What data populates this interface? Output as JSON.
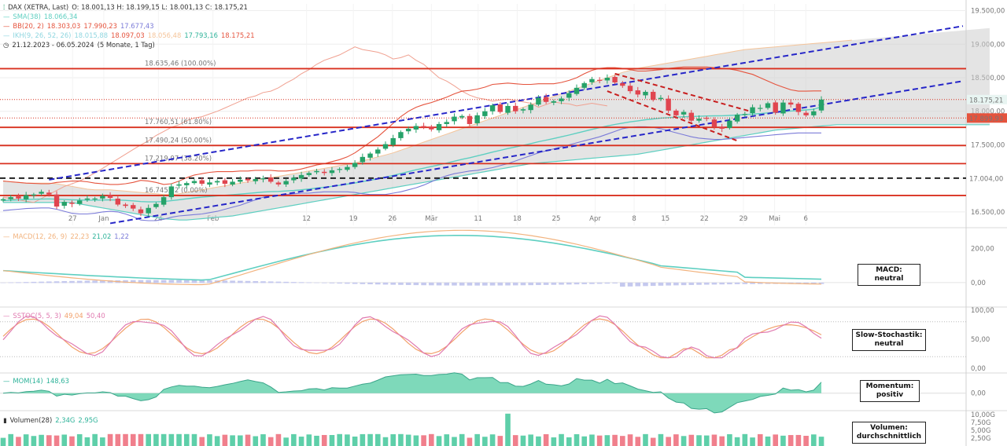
{
  "colors": {
    "up": "#26a269",
    "down": "#e0454f",
    "sma": "#5ecfc1",
    "bb": "#e5533d",
    "ichi_a": "#cdcdcd",
    "fib": "#d9301f",
    "trend": "#2626c8",
    "macd": "#5ecfc1",
    "signal": "#f2b37e",
    "stoch_k": "#e07ab0",
    "stoch_d": "#f2a06a",
    "mom_fill": "#5ecfa9",
    "vol_up": "#5ecfa9",
    "vol_down": "#f07f8c"
  },
  "legend": {
    "symbol": "DAX (XETRA, Last)",
    "ohlc": "O: 18.001,13  H: 18.199,15  L: 18.001,13  C: 18.175,21",
    "sma_name": "SMA(38)",
    "sma_val": "18.066,34",
    "bb_name": "BB(20, 2)",
    "bb_v1": "18.303,03",
    "bb_v2": "17.990,23",
    "bb_v3": "17.677,43",
    "ikh_name": "IKH(9, 26, 52, 26)",
    "ikh_v1": "18.015,88",
    "ikh_v2": "18.097,03",
    "ikh_v3": "18.056,48",
    "ikh_v4": "17.793,16",
    "ikh_v5": "18.175,21",
    "range": "21.12.2023 - 06.05.2024",
    "range_note": "(5 Monate, 1 Tag)",
    "macd_name": "MACD(12, 26, 9)",
    "macd_v1": "22,23",
    "macd_v2": "21,02",
    "macd_v3": "1,22",
    "sstoc_name": "SSTOC(5, 5, 3)",
    "sstoc_v1": "49,04",
    "sstoc_v2": "50,40",
    "mom_name": "MOM(14)",
    "mom_v": "148,63",
    "vol_name": "Volumen(28)",
    "vol_v1": "2,34G",
    "vol_v2": "2,95G"
  },
  "signals": {
    "macd": "MACD:\nneutral",
    "stoch": "Slow-Stochastik:\nneutral",
    "mom": "Momentum:\npositiv",
    "vol": "Volumen:\ndurchschnittlich"
  },
  "fib_labels": [
    "18.635,46 (100.00%)",
    "17.760,51 (61.80%)",
    "17.490,24 (50.00%)",
    "17.219,97 (38.20%)",
    "16.745,52 (0.00%)"
  ],
  "price_tags": {
    "last": "18.175,21",
    "red": "17.899,93",
    "support": "17.004,00"
  },
  "chart_data": {
    "type": "candlestick",
    "main": {
      "ylim": [
        16300,
        19600
      ],
      "y_ticks": [
        "19.500,00",
        "19.000,00",
        "18.500,00",
        "18.000,00",
        "17.500,00",
        "17.000,00",
        "16.500,00"
      ],
      "y_tick_values": [
        19500,
        19000,
        18500,
        18000,
        17500,
        17000,
        16500
      ],
      "x_tick_labels": [
        "27",
        "Jan",
        "24",
        "Feb",
        "12",
        "19",
        "26",
        "Mär",
        "11",
        "18",
        "25",
        "Apr",
        "8",
        "15",
        "22",
        "29",
        "Mai",
        "6"
      ],
      "closes": [
        16690,
        16720,
        16700,
        16750,
        16760,
        16800,
        16760,
        16580,
        16650,
        16620,
        16670,
        16700,
        16700,
        16740,
        16710,
        16610,
        16590,
        16550,
        16480,
        16560,
        16620,
        16720,
        16880,
        16910,
        16930,
        16960,
        16920,
        16940,
        16960,
        16920,
        16950,
        16980,
        16970,
        16990,
        17000,
        16950,
        16910,
        16960,
        17010,
        17050,
        17080,
        17110,
        17080,
        17120,
        17140,
        17170,
        17230,
        17320,
        17370,
        17430,
        17510,
        17600,
        17690,
        17740,
        17780,
        17760,
        17730,
        17810,
        17840,
        17920,
        17930,
        17810,
        17940,
        18000,
        18090,
        17990,
        18080,
        18000,
        18030,
        18100,
        18200,
        18140,
        18150,
        18190,
        18270,
        18350,
        18420,
        18480,
        18460,
        18500,
        18430,
        18380,
        18300,
        18250,
        18290,
        18170,
        18200,
        18010,
        17940,
        17990,
        17860,
        17890,
        17890,
        17770,
        17740,
        17860,
        17950,
        17960,
        18060,
        18050,
        18120,
        17980,
        18130,
        18100,
        17990,
        17940,
        18000,
        18175
      ],
      "sma": [
        16670,
        16675,
        16680,
        16685,
        16688,
        16692,
        16694,
        16690,
        16685,
        16680,
        16678,
        16676,
        16676,
        16678,
        16680,
        16678,
        16672,
        16665,
        16655,
        16650,
        16650,
        16655,
        16668,
        16682,
        16696,
        16710,
        16720,
        16730,
        16740,
        16748,
        16756,
        16766,
        16776,
        16786,
        16796,
        16802,
        16806,
        16812,
        16820,
        16830,
        16842,
        16856,
        16868,
        16882,
        16898,
        16914,
        16932,
        16952,
        16972,
        16994,
        17018,
        17044,
        17072,
        17100,
        17128,
        17152,
        17176,
        17202,
        17228,
        17256,
        17284,
        17308,
        17334,
        17362,
        17392,
        17418,
        17444,
        17468,
        17492,
        17518,
        17546,
        17570,
        17594,
        17620,
        17646,
        17674,
        17702,
        17730,
        17756,
        17782,
        17804,
        17824,
        17842,
        17858,
        17874,
        17886,
        17898,
        17906,
        17912,
        17918,
        17922,
        17926,
        17930,
        17932,
        17934,
        17938,
        17944,
        17950,
        17958,
        17966,
        17976,
        17984,
        17994,
        18004,
        18012,
        18020,
        18030,
        18066
      ],
      "bb_upper": [
        16960,
        16950,
        16940,
        16930,
        16925,
        16920,
        16920,
        16940,
        16950,
        16960,
        16960,
        16950,
        16930,
        16920,
        16910,
        16910,
        16920,
        16940,
        16970,
        16960,
        16940,
        16910,
        16920,
        16960,
        17010,
        17050,
        17070,
        17090,
        17100,
        17100,
        17100,
        17110,
        17110,
        17120,
        17120,
        17120,
        17110,
        17110,
        17120,
        17140,
        17170,
        17200,
        17220,
        17250,
        17280,
        17320,
        17380,
        17460,
        17540,
        17620,
        17720,
        17820,
        17920,
        18000,
        18060,
        18100,
        18130,
        18170,
        18210,
        18260,
        18300,
        18310,
        18330,
        18360,
        18400,
        18410,
        18420,
        18410,
        18400,
        18400,
        18410,
        18410,
        18410,
        18430,
        18460,
        18500,
        18560,
        18610,
        18640,
        18650,
        18650,
        18640,
        18620,
        18600,
        18600,
        18610,
        18620,
        18640,
        18650,
        18660,
        18660,
        18660,
        18660,
        18650,
        18640,
        18630,
        18610,
        18580,
        18550,
        18500,
        18450,
        18400,
        18360,
        18320,
        18300,
        18300,
        18303,
        18303
      ],
      "bb_lower": [
        16520,
        16530,
        16540,
        16550,
        16555,
        16560,
        16560,
        16540,
        16510,
        16480,
        16470,
        16470,
        16480,
        16500,
        16510,
        16500,
        16470,
        16430,
        16380,
        16370,
        16370,
        16390,
        16420,
        16440,
        16450,
        16460,
        16470,
        16490,
        16510,
        16540,
        16570,
        16600,
        16640,
        16680,
        16720,
        16740,
        16750,
        16760,
        16770,
        16780,
        16780,
        16790,
        16800,
        16800,
        16800,
        16800,
        16790,
        16770,
        16760,
        16760,
        16760,
        16780,
        16800,
        16830,
        16860,
        16900,
        16950,
        17000,
        17040,
        17070,
        17090,
        17110,
        17120,
        17140,
        17160,
        17190,
        17220,
        17260,
        17300,
        17340,
        17380,
        17410,
        17440,
        17470,
        17500,
        17530,
        17560,
        17590,
        17620,
        17660,
        17700,
        17740,
        17760,
        17770,
        17770,
        17760,
        17740,
        17710,
        17680,
        17650,
        17620,
        17600,
        17590,
        17580,
        17580,
        17590,
        17600,
        17610,
        17620,
        17630,
        17640,
        17650,
        17660,
        17670,
        17677,
        17677,
        17677,
        17677
      ],
      "cloud_top": [
        16960,
        16950,
        16940,
        16930,
        16930,
        16930,
        16930,
        16920,
        16900,
        16880,
        16860,
        16840,
        16830,
        16830,
        16830,
        16820,
        16810,
        16800,
        16790,
        16780,
        16770,
        16760,
        16760,
        16770,
        16790,
        16810,
        16830,
        16850,
        16870,
        16890,
        16910,
        16930,
        16950,
        16970,
        16990,
        17010,
        17030,
        17050,
        17070,
        17090,
        17110,
        17130,
        17150,
        17170,
        17190,
        17210,
        17230,
        17260,
        17290,
        17320,
        17350,
        17380,
        17420,
        17460,
        17500,
        17540,
        17580,
        17620,
        17660,
        17700,
        17740,
        17780,
        17820,
        17860,
        17900,
        17940,
        17980,
        18020,
        18060,
        18100,
        18140,
        18180,
        18220,
        18260,
        18300,
        18340,
        18380,
        18420,
        18460,
        18500,
        18540,
        18580,
        18610,
        18640,
        18660,
        18680,
        18700,
        18720,
        18740,
        18760,
        18780,
        18800,
        18820,
        18840,
        18860,
        18880,
        18900,
        18920,
        18930,
        18940,
        18950,
        18960,
        18970,
        18980,
        18990,
        19000,
        19010,
        19020,
        19030,
        19040,
        19050,
        19060,
        19070,
        19080,
        19090,
        19100,
        19110,
        19120,
        19130,
        19140,
        19150,
        19160,
        19170,
        19180,
        19190,
        19200,
        19210,
        19220,
        19230,
        19240
      ],
      "cloud_bottom": [
        16640,
        16640,
        16640,
        16640,
        16640,
        16640,
        16640,
        16640,
        16640,
        16640,
        16620,
        16600,
        16580,
        16560,
        16540,
        16520,
        16500,
        16480,
        16460,
        16440,
        16420,
        16400,
        16390,
        16380,
        16380,
        16390,
        16400,
        16410,
        16420,
        16430,
        16440,
        16460,
        16480,
        16500,
        16520,
        16540,
        16560,
        16580,
        16600,
        16620,
        16640,
        16660,
        16680,
        16700,
        16720,
        16740,
        16760,
        16780,
        16800,
        16820,
        16840,
        16860,
        16880,
        16900,
        16920,
        16940,
        16960,
        16980,
        17000,
        17020,
        17040,
        17060,
        17080,
        17100,
        17120,
        17140,
        17160,
        17180,
        17200,
        17220,
        17230,
        17240,
        17250,
        17260,
        17270,
        17280,
        17290,
        17300,
        17310,
        17320,
        17330,
        17340,
        17350,
        17360,
        17380,
        17400,
        17420,
        17440,
        17460,
        17480,
        17500,
        17520,
        17540,
        17560,
        17580,
        17600,
        17620,
        17640,
        17660,
        17680,
        17700,
        17720,
        17730,
        17740,
        17750,
        17760,
        17770,
        17780,
        17790,
        17800,
        17800,
        17800,
        17800,
        17800,
        17800,
        17800,
        17800,
        17800,
        17800,
        17800,
        17800,
        17800,
        17800,
        17800,
        17800,
        17800,
        17800,
        17800,
        17800,
        17800
      ],
      "lagging": [
        16720,
        16700,
        16680,
        16660,
        16640,
        16700,
        16760,
        16820,
        16880,
        16920,
        16960,
        17020,
        17080,
        17150,
        17220,
        17290,
        17360,
        17430,
        17500,
        17560,
        17640,
        17700,
        17760,
        17800,
        17860,
        17900,
        17920,
        17960,
        18000,
        18050,
        18100,
        18150,
        18200,
        18230,
        18280,
        18300,
        18350,
        18420,
        18480,
        18560,
        18620,
        18700,
        18760,
        18800,
        18840,
        18900,
        18960,
        18920,
        18900,
        18880,
        18840,
        18780,
        18800,
        18840,
        18760,
        18700,
        18600,
        18500,
        18450,
        18380,
        18300,
        18240,
        18200,
        18180,
        18150,
        18170,
        18180,
        18160,
        18140,
        18120,
        18060,
        18100,
        18140,
        18120,
        18110,
        18080,
        18100,
        18120,
        18100,
        18080
      ],
      "fib_levels": [
        18635.46,
        17760.51,
        17490.24,
        17219.97,
        16745.52
      ],
      "support_level": 17004.0
    },
    "macd": {
      "ylim": [
        -120,
        280
      ],
      "y_ticks": [
        "200,00",
        "0,00"
      ],
      "y_tick_values": [
        200,
        0
      ]
    },
    "stoch": {
      "ylim": [
        0,
        100
      ],
      "y_ticks": [
        "100,00",
        "50,00",
        "0,00"
      ],
      "y_tick_values": [
        100,
        50,
        0
      ]
    },
    "mom": {
      "ylim": [
        -500,
        600
      ],
      "y_ticks": [
        "0,00"
      ],
      "y_tick_values": [
        0
      ]
    },
    "volume": {
      "y_ticks": [
        "10,00G",
        "7,50G",
        "5,00G",
        "2,50G"
      ],
      "y_tick_values": [
        10,
        7.5,
        5,
        2.5
      ]
    }
  }
}
